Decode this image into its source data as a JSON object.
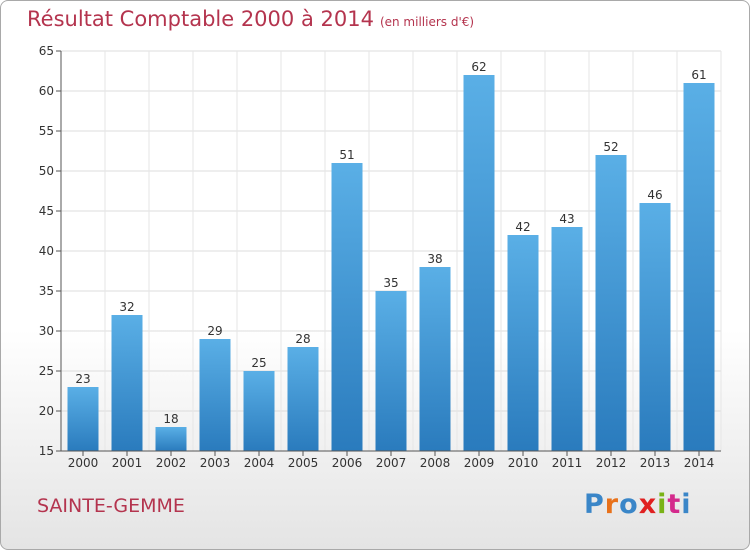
{
  "header": {
    "title": "Résultat Comptable 2000 à 2014",
    "subtitle": "(en milliers d'€)"
  },
  "footer": {
    "place": "SAINTE-GEMME",
    "logo_text": "Proxiti",
    "logo_colors": [
      "#3a86c8",
      "#e8711a",
      "#3a86c8",
      "#e02020",
      "#7ab317",
      "#d42a8c",
      "#3a86c8"
    ]
  },
  "colors": {
    "bar_top": "#5aafe6",
    "bar_bottom": "#2a7bbd",
    "title": "#b4344e"
  },
  "chart_data": {
    "type": "bar",
    "categories": [
      "2000",
      "2001",
      "2002",
      "2003",
      "2004",
      "2005",
      "2006",
      "2007",
      "2008",
      "2009",
      "2010",
      "2011",
      "2012",
      "2013",
      "2014"
    ],
    "values": [
      23,
      32,
      18,
      29,
      25,
      28,
      51,
      35,
      38,
      62,
      42,
      43,
      52,
      46,
      61
    ],
    "ylim": [
      15,
      65
    ],
    "yticks": [
      15,
      20,
      25,
      30,
      35,
      40,
      45,
      50,
      55,
      60,
      65
    ],
    "grid": true
  }
}
